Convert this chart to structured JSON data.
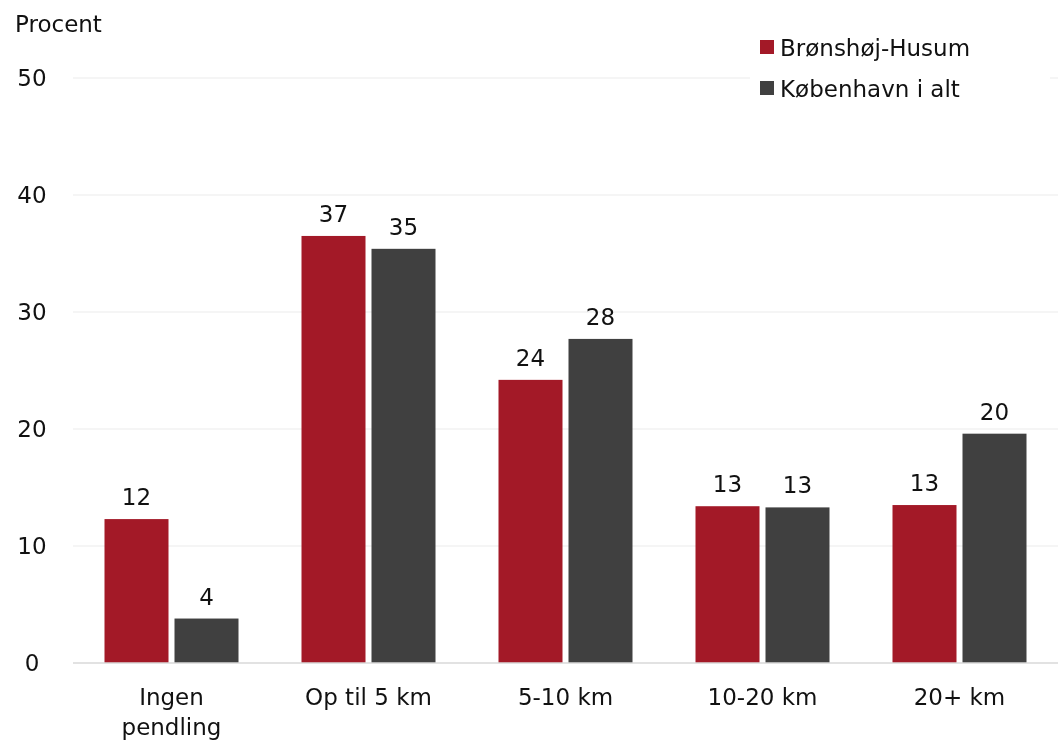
{
  "chart_data": {
    "type": "bar",
    "ylabel": "Procent",
    "categories": [
      "Ingen pendling",
      "Op til 5 km",
      "5-10 km",
      "10-20 km",
      "20+ km"
    ],
    "series": [
      {
        "name": "Brønshøj-Husum",
        "color": "#a31927",
        "values": [
          12.3,
          36.5,
          24.2,
          13.4,
          13.5
        ],
        "value_labels": [
          "12",
          "37",
          "24",
          "13",
          "13"
        ]
      },
      {
        "name": "København i alt",
        "color": "#404040",
        "values": [
          3.8,
          35.4,
          27.7,
          13.3,
          19.6
        ],
        "value_labels": [
          "4",
          "35",
          "28",
          "13",
          "20"
        ]
      }
    ],
    "ylim": [
      0,
      50
    ],
    "yticks": [
      0,
      10,
      20,
      30,
      40,
      50
    ],
    "grid": "y",
    "legend": "top right"
  }
}
